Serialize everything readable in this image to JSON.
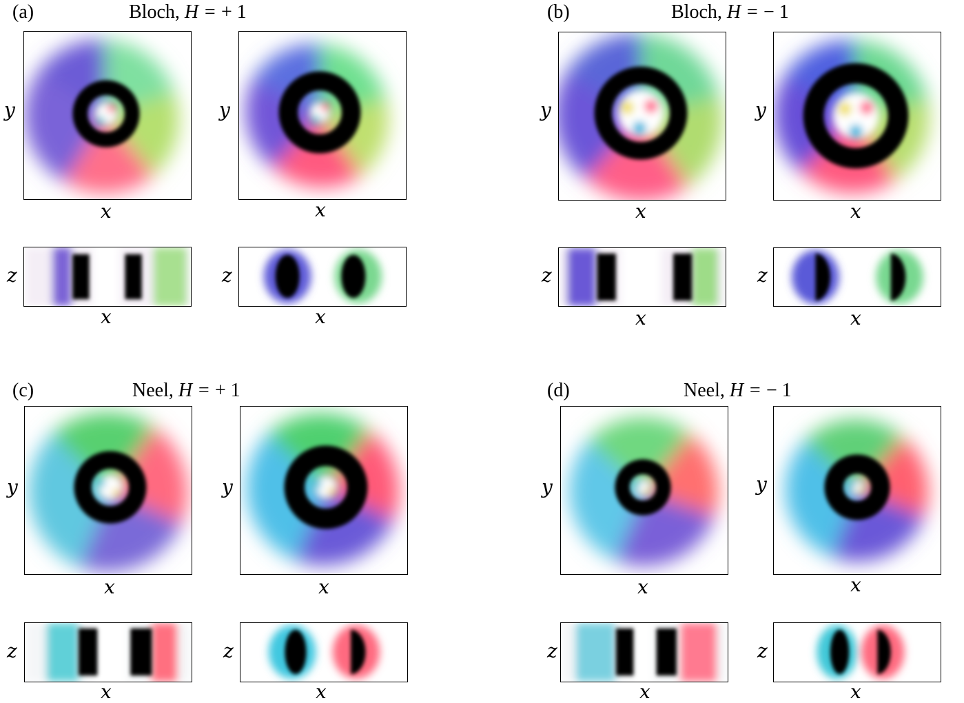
{
  "axis_labels": {
    "x": "x",
    "y": "y",
    "z": "z"
  },
  "panels": [
    {
      "id": "a",
      "label": "(a)",
      "wall": "Bloch",
      "h_prefix": "H = ",
      "h_value": "+ 1"
    },
    {
      "id": "b",
      "label": "(b)",
      "wall": "Bloch",
      "h_prefix": "H = ",
      "h_value": "− 1"
    },
    {
      "id": "c",
      "label": "(c)",
      "wall": "Neel",
      "h_prefix": "H = ",
      "h_value": "+ 1"
    },
    {
      "id": "d",
      "label": "(d)",
      "wall": "Neel",
      "h_prefix": "H = ",
      "h_value": "− 1"
    }
  ]
}
